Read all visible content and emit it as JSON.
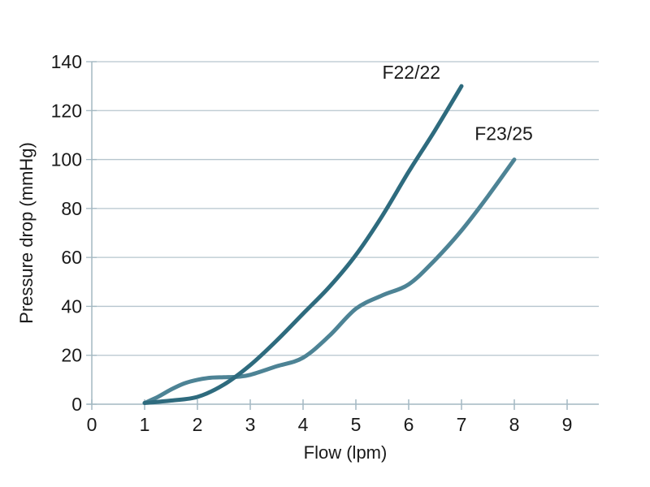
{
  "chart_data": {
    "type": "line",
    "title": "",
    "xlabel": "Flow (lpm)",
    "ylabel": "Pressure drop (mmHg)",
    "xlim": [
      0,
      9.6
    ],
    "ylim": [
      0,
      140
    ],
    "x_ticks": [
      0,
      1,
      2,
      3,
      4,
      5,
      6,
      7,
      8,
      9
    ],
    "y_ticks": [
      0,
      20,
      40,
      60,
      80,
      100,
      120,
      140
    ],
    "grid": "horizontal-only",
    "legend": "inline-curve-labels",
    "series": [
      {
        "name": "F22/22",
        "color": "#2e6b7e",
        "points": [
          [
            1,
            0.5
          ],
          [
            1.5,
            1.5
          ],
          [
            2,
            3
          ],
          [
            2.5,
            8
          ],
          [
            3,
            16
          ],
          [
            3.5,
            26
          ],
          [
            4,
            37
          ],
          [
            4.5,
            48
          ],
          [
            5,
            61
          ],
          [
            5.5,
            77
          ],
          [
            6,
            95
          ],
          [
            6.5,
            112
          ],
          [
            7,
            130
          ]
        ]
      },
      {
        "name": "F23/25",
        "color": "#4d8395",
        "points": [
          [
            1,
            0.5
          ],
          [
            1.25,
            3
          ],
          [
            1.5,
            6
          ],
          [
            1.75,
            8.5
          ],
          [
            2,
            10
          ],
          [
            2.25,
            10.8
          ],
          [
            2.5,
            11
          ],
          [
            2.75,
            11.2
          ],
          [
            3,
            12
          ],
          [
            3.5,
            15.5
          ],
          [
            4,
            19
          ],
          [
            4.5,
            28
          ],
          [
            5,
            39
          ],
          [
            5.5,
            44.5
          ],
          [
            6,
            49
          ],
          [
            6.5,
            59
          ],
          [
            7,
            71
          ],
          [
            7.5,
            85
          ],
          [
            8,
            100
          ]
        ]
      }
    ],
    "annotations": [
      {
        "text": "F22/22",
        "x": 6.05,
        "y": 133
      },
      {
        "text": "F23/25",
        "x": 7.8,
        "y": 108
      }
    ]
  },
  "colors": {
    "background": "#ffffff",
    "gridline": "#b6c5ce",
    "axis": "#a3b8c2",
    "text": "#1a1a1a"
  }
}
